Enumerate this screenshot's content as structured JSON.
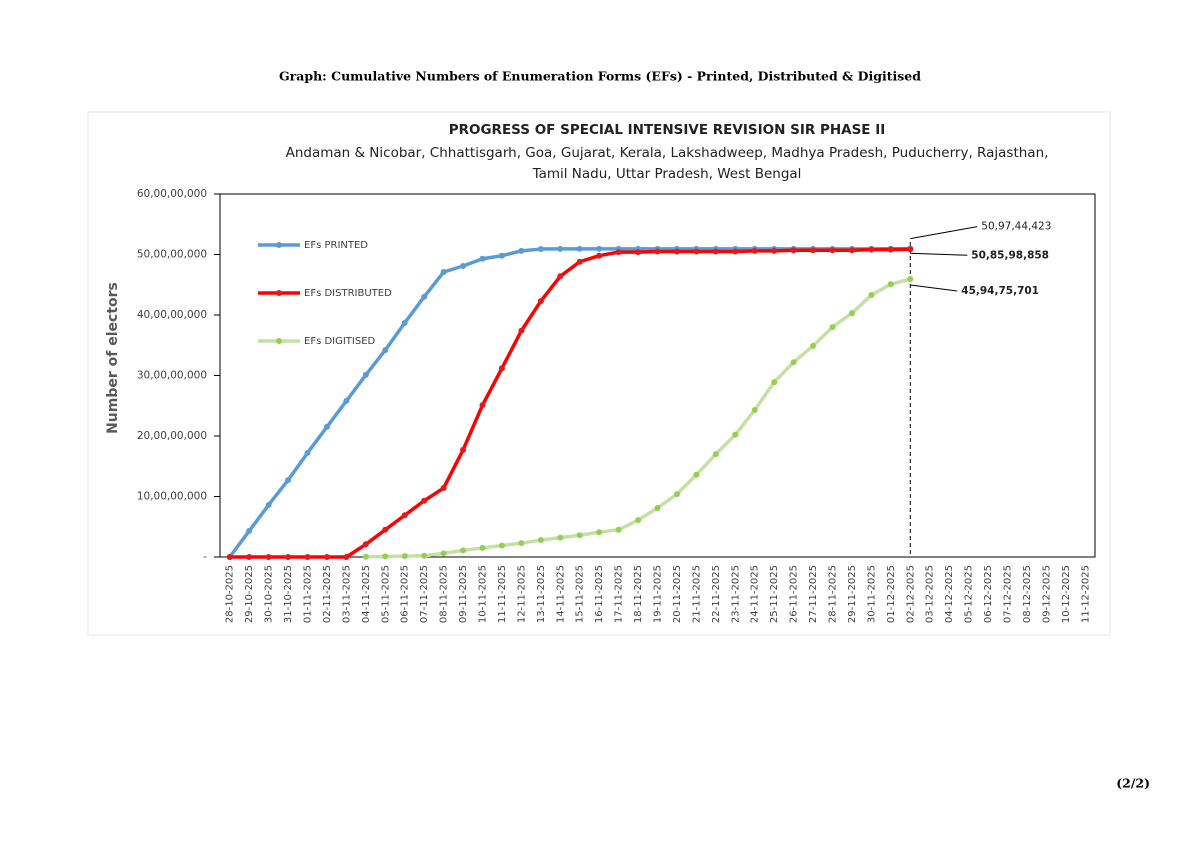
{
  "document": {
    "heading": "Graph: Cumulative Numbers of Enumeration Forms (EFs) - Printed, Distributed & Digitised",
    "page": "(2/2)"
  },
  "chart_data": {
    "type": "line",
    "title": "PROGRESS OF SPECIAL INTENSIVE REVISION SIR PHASE II",
    "subtitle": [
      "Andaman & Nicobar, Chhattisgarh, Goa, Gujarat, Kerala, Lakshadweep, Madhya Pradesh, Puducherry, Rajasthan,",
      "Tamil Nadu, Uttar Pradesh, West Bengal"
    ],
    "y_label": "Number of electors",
    "categories": [
      "28-10-2025",
      "29-10-2025",
      "30-10-2025",
      "31-10-2025",
      "01-11-2025",
      "02-11-2025",
      "03-11-2025",
      "04-11-2025",
      "05-11-2025",
      "06-11-2025",
      "07-11-2025",
      "08-11-2025",
      "09-11-2025",
      "10-11-2025",
      "11-11-2025",
      "12-11-2025",
      "13-11-2025",
      "14-11-2025",
      "15-11-2025",
      "16-11-2025",
      "17-11-2025",
      "18-11-2025",
      "19-11-2025",
      "20-11-2025",
      "21-11-2025",
      "22-11-2025",
      "23-11-2025",
      "24-11-2025",
      "25-11-2025",
      "26-11-2025",
      "27-11-2025",
      "28-11-2025",
      "29-11-2025",
      "30-11-2025",
      "01-12-2025",
      "02-12-2025",
      "03-12-2025",
      "04-12-2025",
      "05-12-2025",
      "06-12-2025",
      "07-12-2025",
      "08-12-2025",
      "09-12-2025",
      "10-12-2025",
      "11-12-2025"
    ],
    "series": [
      {
        "name": "EFs PRINTED",
        "color": "#5b9bd5",
        "marker_color": "#5b9bd5",
        "values": [
          0,
          43000000,
          86000000,
          127000000,
          172000000,
          215000000,
          258000000,
          301000000,
          342000000,
          387000000,
          430000000,
          471000000,
          481000000,
          493000000,
          498000000,
          506000000,
          509000000,
          509200000,
          509400000,
          509400000,
          509400000,
          509400000,
          509400000,
          509400000,
          509400000,
          509400000,
          509400000,
          509400000,
          509400000,
          509400000,
          509400000,
          509400000,
          509400000,
          509400000,
          509500000,
          509744423,
          null,
          null,
          null,
          null,
          null,
          null,
          null,
          null,
          null
        ],
        "value_labels": [
          null,
          null,
          null,
          null,
          null,
          null,
          null,
          null,
          null,
          null,
          null,
          null,
          null,
          null,
          null,
          null,
          null,
          null,
          null,
          null,
          null,
          null,
          null,
          null,
          null,
          null,
          null,
          null,
          null,
          null,
          null,
          null,
          null,
          null,
          null,
          "50,97,44,423",
          null,
          null,
          null,
          null,
          null,
          null,
          null,
          null,
          null
        ]
      },
      {
        "name": "EFs DISTRIBUTED",
        "color": "#ff0000",
        "marker_color": "#e31a1c",
        "values": [
          0,
          0,
          0,
          0,
          0,
          0,
          0,
          21000000,
          45000000,
          69000000,
          93000000,
          114000000,
          177000000,
          251000000,
          312000000,
          374000000,
          423000000,
          464000000,
          488000000,
          498000000,
          504000000,
          504000000,
          505000000,
          505000000,
          505000000,
          505000000,
          505000000,
          506000000,
          506000000,
          507000000,
          507000000,
          507000000,
          507000000,
          508000000,
          508000000,
          508598858,
          null,
          null,
          null,
          null,
          null,
          null,
          null,
          null,
          null
        ],
        "value_labels": [
          null,
          null,
          null,
          null,
          null,
          null,
          null,
          null,
          null,
          null,
          null,
          null,
          null,
          null,
          null,
          null,
          null,
          null,
          null,
          null,
          null,
          null,
          null,
          null,
          null,
          null,
          null,
          null,
          null,
          null,
          null,
          null,
          null,
          null,
          null,
          "50,85,98,858",
          null,
          null,
          null,
          null,
          null,
          null,
          null,
          null,
          null
        ]
      },
      {
        "name": "EFs DIGITISED",
        "color": "#c5e0a5",
        "marker_color": "#92d050",
        "values": [
          null,
          null,
          null,
          null,
          null,
          null,
          null,
          500000,
          1000000,
          1500000,
          2000000,
          6000000,
          11000000,
          15000000,
          19000000,
          23000000,
          28000000,
          32000000,
          36000000,
          41000000,
          45000000,
          61000000,
          81000000,
          104000000,
          136000000,
          170000000,
          202000000,
          243000000,
          289000000,
          322000000,
          349000000,
          380000000,
          403000000,
          433000000,
          451000000,
          459475701,
          null,
          null,
          null,
          null,
          null,
          null,
          null,
          null,
          null
        ],
        "value_labels": [
          null,
          null,
          null,
          null,
          null,
          null,
          null,
          null,
          null,
          null,
          null,
          null,
          null,
          null,
          null,
          null,
          null,
          null,
          null,
          null,
          null,
          null,
          null,
          null,
          null,
          null,
          null,
          null,
          null,
          null,
          null,
          null,
          null,
          null,
          null,
          "45,94,75,701",
          null,
          null,
          null,
          null,
          null,
          null,
          null,
          null,
          null
        ]
      }
    ],
    "ylim": [
      0,
      600000000
    ],
    "yticks": [
      {
        "value": 0,
        "label": "-"
      },
      {
        "value": 100000000,
        "label": "10,00,00,000"
      },
      {
        "value": 200000000,
        "label": "20,00,00,000"
      },
      {
        "value": 300000000,
        "label": "30,00,00,000"
      },
      {
        "value": 400000000,
        "label": "40,00,00,000"
      },
      {
        "value": 500000000,
        "label": "50,00,00,000"
      },
      {
        "value": 600000000,
        "label": "60,00,00,000"
      }
    ],
    "grid": false,
    "legend": "upper left"
  }
}
